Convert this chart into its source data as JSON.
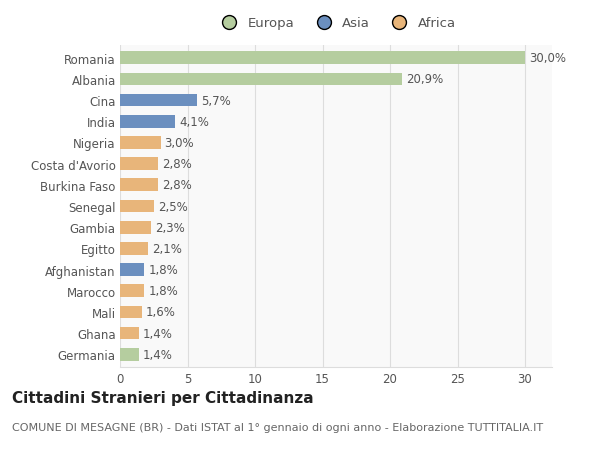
{
  "categories": [
    "Germania",
    "Ghana",
    "Mali",
    "Marocco",
    "Afghanistan",
    "Egitto",
    "Gambia",
    "Senegal",
    "Burkina Faso",
    "Costa d'Avorio",
    "Nigeria",
    "India",
    "Cina",
    "Albania",
    "Romania"
  ],
  "values": [
    1.4,
    1.4,
    1.6,
    1.8,
    1.8,
    2.1,
    2.3,
    2.5,
    2.8,
    2.8,
    3.0,
    4.1,
    5.7,
    20.9,
    30.0
  ],
  "labels": [
    "1,4%",
    "1,4%",
    "1,6%",
    "1,8%",
    "1,8%",
    "2,1%",
    "2,3%",
    "2,5%",
    "2,8%",
    "2,8%",
    "3,0%",
    "4,1%",
    "5,7%",
    "20,9%",
    "30,0%"
  ],
  "continents": [
    "Europa",
    "Africa",
    "Africa",
    "Africa",
    "Asia",
    "Africa",
    "Africa",
    "Africa",
    "Africa",
    "Africa",
    "Africa",
    "Asia",
    "Asia",
    "Europa",
    "Europa"
  ],
  "colors": {
    "Europa": "#b5cd9f",
    "Asia": "#6b8fbf",
    "Africa": "#e8b57a"
  },
  "legend_order": [
    "Europa",
    "Asia",
    "Africa"
  ],
  "xlim": [
    0,
    32
  ],
  "xticks": [
    0,
    5,
    10,
    15,
    20,
    25,
    30
  ],
  "title": "Cittadini Stranieri per Cittadinanza",
  "subtitle": "COMUNE DI MESAGNE (BR) - Dati ISTAT al 1° gennaio di ogni anno - Elaborazione TUTTITALIA.IT",
  "bg_color": "#ffffff",
  "plot_bg_color": "#f9f9f9",
  "grid_color": "#dddddd",
  "bar_height": 0.6,
  "label_fontsize": 8.5,
  "tick_fontsize": 8.5,
  "title_fontsize": 11,
  "subtitle_fontsize": 8
}
